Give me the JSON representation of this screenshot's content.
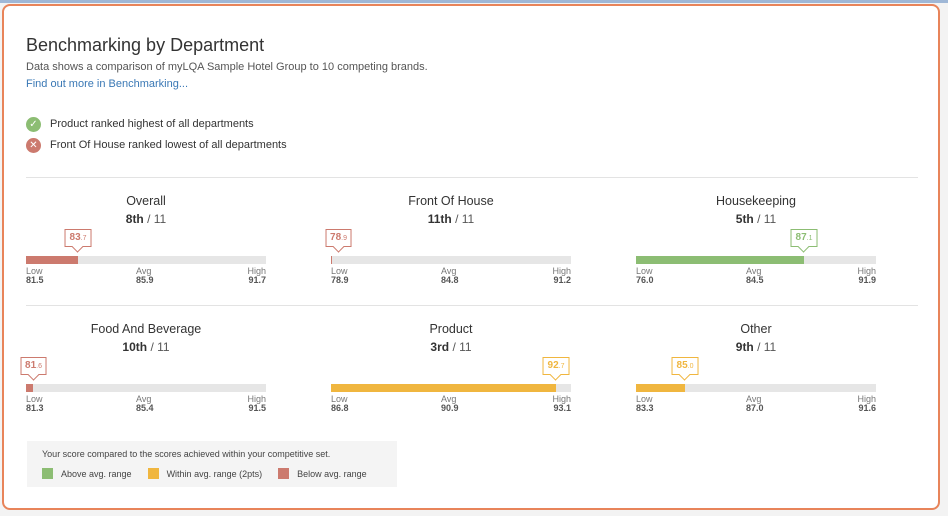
{
  "colors": {
    "accent_border": "#e8845a",
    "link": "#3a78b5",
    "above": "#8cbd73",
    "within": "#f0b63f",
    "below": "#cc7a6e"
  },
  "header": {
    "title": "Benchmarking by Department",
    "subtitle": "Data shows a comparison of myLQA Sample Hotel Group to 10 competing brands.",
    "link": "Find out more in Benchmarking..."
  },
  "insights": [
    {
      "icon": "check-circle-icon",
      "text": "Product ranked highest of all departments"
    },
    {
      "icon": "cross-circle-icon",
      "text": "Front Of House ranked lowest of all departments"
    }
  ],
  "labels": {
    "low": "Low",
    "avg": "Avg",
    "high": "High"
  },
  "departments": [
    {
      "name": "Overall",
      "rank": "8th",
      "total": "/ 11",
      "score_main": "83",
      "score_dec": ".7",
      "score": 83.7,
      "low": "81.5",
      "avg": "85.9",
      "high": "91.7",
      "status": "below"
    },
    {
      "name": "Front Of House",
      "rank": "11th",
      "total": "/ 11",
      "score_main": "78",
      "score_dec": ".9",
      "score": 78.9,
      "low": "78.9",
      "avg": "84.8",
      "high": "91.2",
      "status": "below"
    },
    {
      "name": "Housekeeping",
      "rank": "5th",
      "total": "/ 11",
      "score_main": "87",
      "score_dec": ".1",
      "score": 87.1,
      "low": "76.0",
      "avg": "84.5",
      "high": "91.9",
      "status": "above"
    },
    {
      "name": "Food And Beverage",
      "rank": "10th",
      "total": "/ 11",
      "score_main": "81",
      "score_dec": ".6",
      "score": 81.6,
      "low": "81.3",
      "avg": "85.4",
      "high": "91.5",
      "status": "below"
    },
    {
      "name": "Product",
      "rank": "3rd",
      "total": "/ 11",
      "score_main": "92",
      "score_dec": ".7",
      "score": 92.7,
      "low": "86.8",
      "avg": "90.9",
      "high": "93.1",
      "status": "within"
    },
    {
      "name": "Other",
      "rank": "9th",
      "total": "/ 11",
      "score_main": "85",
      "score_dec": ".0",
      "score": 85.0,
      "low": "83.3",
      "avg": "87.0",
      "high": "91.6",
      "status": "within"
    }
  ],
  "legend": {
    "caption": "Your score compared to the scores achieved within your competitive set.",
    "items": [
      {
        "label": "Above avg. range",
        "status": "above"
      },
      {
        "label": "Within avg. range (2pts)",
        "status": "within"
      },
      {
        "label": "Below avg. range",
        "status": "below"
      }
    ]
  }
}
